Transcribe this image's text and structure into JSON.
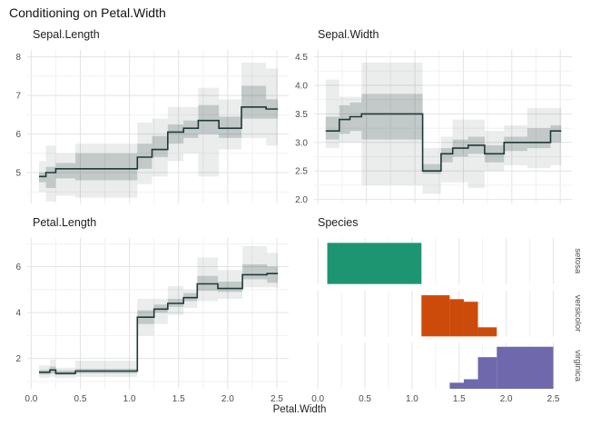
{
  "title": "Conditioning on Petal.Width",
  "xlabel": "Petal.Width",
  "colors": {
    "background": "#ffffff",
    "grid_major": "#e3e3e3",
    "grid_minor": "#f1f1f1",
    "line": "#1e3a39",
    "band_inner": "#1e3a39",
    "band_outer": "#1e3a39",
    "band_inner_opacity": 0.2,
    "band_outer_opacity": 0.09,
    "axis_text": "#4d4d4d",
    "setosa": "#1e9571",
    "versicolor": "#cd4b0a",
    "virginica": "#6f68ac"
  },
  "chart_data": {
    "type": "step-line-grid",
    "x_variable": "Petal.Width",
    "xlim": [
      -0.04,
      2.62
    ],
    "x_grid": [
      0,
      0.25,
      0.5,
      0.75,
      1.0,
      1.25,
      1.5,
      1.75,
      2.0,
      2.25,
      2.5
    ],
    "x_tick_values": [
      0.0,
      0.5,
      1.0,
      1.5,
      2.0,
      2.5
    ],
    "x_tick_labels": [
      "0.0",
      "0.5",
      "1.0",
      "1.5",
      "2.0",
      "2.5"
    ],
    "panels": [
      {
        "key": "sepal-length",
        "title": "Sepal.Length",
        "type": "step",
        "ylim": [
          4.2,
          8.18
        ],
        "y_tick_values": [
          8,
          7,
          6,
          5
        ],
        "y_tick_labels": [
          "8",
          "7",
          "6",
          "5"
        ],
        "y_minor": [
          4.5,
          5.5,
          6.5,
          7.5
        ],
        "segments": [
          {
            "x0": 0.08,
            "x1": 0.15,
            "y": 4.9,
            "inner": [
              4.75,
              5.0
            ],
            "outer": [
              4.5,
              5.3
            ]
          },
          {
            "x0": 0.15,
            "x1": 0.25,
            "y": 5.0,
            "inner": [
              4.6,
              5.15
            ],
            "outer": [
              4.25,
              5.7
            ]
          },
          {
            "x0": 0.25,
            "x1": 0.45,
            "y": 5.1,
            "inner": [
              4.85,
              5.25
            ],
            "outer": [
              4.4,
              5.5
            ]
          },
          {
            "x0": 0.45,
            "x1": 1.08,
            "y": 5.1,
            "inner": [
              4.8,
              5.5
            ],
            "outer": [
              4.35,
              5.75
            ]
          },
          {
            "x0": 1.08,
            "x1": 1.23,
            "y": 5.4,
            "inner": [
              5.1,
              5.75
            ],
            "outer": [
              4.7,
              6.3
            ]
          },
          {
            "x0": 1.23,
            "x1": 1.39,
            "y": 5.6,
            "inner": [
              5.4,
              5.95
            ],
            "outer": [
              4.9,
              6.4
            ]
          },
          {
            "x0": 1.39,
            "x1": 1.55,
            "y": 6.05,
            "inner": [
              5.75,
              6.25
            ],
            "outer": [
              5.3,
              6.7
            ]
          },
          {
            "x0": 1.55,
            "x1": 1.7,
            "y": 6.15,
            "inner": [
              5.9,
              6.35
            ],
            "outer": [
              5.5,
              6.7
            ]
          },
          {
            "x0": 1.7,
            "x1": 1.91,
            "y": 6.35,
            "inner": [
              6.0,
              6.75
            ],
            "outer": [
              4.9,
              7.2
            ]
          },
          {
            "x0": 1.91,
            "x1": 2.14,
            "y": 6.15,
            "inner": [
              5.9,
              6.45
            ],
            "outer": [
              5.6,
              6.9
            ]
          },
          {
            "x0": 2.14,
            "x1": 2.39,
            "y": 6.7,
            "inner": [
              6.4,
              7.25
            ],
            "outer": [
              5.9,
              7.85
            ]
          },
          {
            "x0": 2.39,
            "x1": 2.51,
            "y": 6.65,
            "inner": [
              6.4,
              6.9
            ],
            "outer": [
              5.7,
              7.7
            ]
          }
        ]
      },
      {
        "key": "sepal-width",
        "title": "Sepal.Width",
        "type": "step",
        "ylim": [
          1.93,
          4.62
        ],
        "y_tick_values": [
          4.5,
          4.0,
          3.5,
          3.0,
          2.5,
          2.0
        ],
        "y_tick_labels": [
          "4.5",
          "4.0",
          "3.5",
          "3.0",
          "2.5",
          "2.0"
        ],
        "y_minor": [
          2.25,
          2.75,
          3.25,
          3.75,
          4.25
        ],
        "segments": [
          {
            "x0": 0.08,
            "x1": 0.22,
            "y": 3.2,
            "inner": [
              3.05,
              3.45
            ],
            "outer": [
              2.9,
              4.1
            ]
          },
          {
            "x0": 0.22,
            "x1": 0.33,
            "y": 3.4,
            "inner": [
              3.15,
              3.65
            ],
            "outer": [
              3.0,
              3.8
            ]
          },
          {
            "x0": 0.33,
            "x1": 0.45,
            "y": 3.45,
            "inner": [
              3.2,
              3.7
            ],
            "outer": [
              3.0,
              3.8
            ]
          },
          {
            "x0": 0.45,
            "x1": 1.08,
            "y": 3.5,
            "inner": [
              3.05,
              3.85
            ],
            "outer": [
              2.25,
              4.4
            ]
          },
          {
            "x0": 1.08,
            "x1": 1.27,
            "y": 2.5,
            "inner": [
              2.45,
              2.62
            ],
            "outer": [
              2.1,
              2.9
            ]
          },
          {
            "x0": 1.27,
            "x1": 1.39,
            "y": 2.8,
            "inner": [
              2.65,
              2.9
            ],
            "outer": [
              2.3,
              3.1
            ]
          },
          {
            "x0": 1.39,
            "x1": 1.55,
            "y": 2.9,
            "inner": [
              2.75,
              3.05
            ],
            "outer": [
              2.3,
              3.4
            ]
          },
          {
            "x0": 1.55,
            "x1": 1.72,
            "y": 2.95,
            "inner": [
              2.8,
              3.1
            ],
            "outer": [
              2.2,
              3.4
            ]
          },
          {
            "x0": 1.72,
            "x1": 1.92,
            "y": 2.8,
            "inner": [
              2.65,
              2.95
            ],
            "outer": [
              2.5,
              3.2
            ]
          },
          {
            "x0": 1.92,
            "x1": 2.16,
            "y": 3.0,
            "inner": [
              2.85,
              3.1
            ],
            "outer": [
              2.6,
              3.3
            ]
          },
          {
            "x0": 2.16,
            "x1": 2.4,
            "y": 3.0,
            "inner": [
              2.9,
              3.25
            ],
            "outer": [
              2.55,
              3.6
            ]
          },
          {
            "x0": 2.4,
            "x1": 2.51,
            "y": 3.2,
            "inner": [
              3.0,
              3.3
            ],
            "outer": [
              2.6,
              3.6
            ]
          }
        ]
      },
      {
        "key": "petal-length",
        "title": "Petal.Length",
        "type": "step",
        "ylim": [
          0.68,
          7.25
        ],
        "y_tick_values": [
          6,
          4,
          2
        ],
        "y_tick_labels": [
          "6",
          "4",
          "2"
        ],
        "y_minor": [
          1,
          3,
          5,
          7
        ],
        "segments": [
          {
            "x0": 0.08,
            "x1": 0.19,
            "y": 1.4,
            "inner": [
              1.3,
              1.5
            ],
            "outer": [
              1.15,
              1.7
            ]
          },
          {
            "x0": 0.19,
            "x1": 0.25,
            "y": 1.5,
            "inner": [
              1.35,
              1.65
            ],
            "outer": [
              1.2,
              1.95
            ]
          },
          {
            "x0": 0.25,
            "x1": 0.45,
            "y": 1.35,
            "inner": [
              1.28,
              1.48
            ],
            "outer": [
              1.15,
              1.6
            ]
          },
          {
            "x0": 0.45,
            "x1": 1.08,
            "y": 1.45,
            "inner": [
              1.35,
              1.55
            ],
            "outer": [
              1.2,
              1.9
            ]
          },
          {
            "x0": 1.08,
            "x1": 1.25,
            "y": 3.8,
            "inner": [
              3.5,
              4.1
            ],
            "outer": [
              3.0,
              4.6
            ]
          },
          {
            "x0": 1.25,
            "x1": 1.39,
            "y": 4.15,
            "inner": [
              4.0,
              4.35
            ],
            "outer": [
              3.5,
              4.6
            ]
          },
          {
            "x0": 1.39,
            "x1": 1.55,
            "y": 4.4,
            "inner": [
              4.25,
              4.6
            ],
            "outer": [
              3.9,
              5.15
            ]
          },
          {
            "x0": 1.55,
            "x1": 1.69,
            "y": 4.65,
            "inner": [
              4.5,
              4.85
            ],
            "outer": [
              4.2,
              5.0
            ]
          },
          {
            "x0": 1.69,
            "x1": 1.9,
            "y": 5.25,
            "inner": [
              4.95,
              5.6
            ],
            "outer": [
              4.5,
              6.4
            ]
          },
          {
            "x0": 1.9,
            "x1": 2.15,
            "y": 5.05,
            "inner": [
              4.9,
              5.35
            ],
            "outer": [
              4.6,
              5.85
            ]
          },
          {
            "x0": 2.15,
            "x1": 2.4,
            "y": 5.65,
            "inner": [
              5.45,
              6.1
            ],
            "outer": [
              5.1,
              6.9
            ]
          },
          {
            "x0": 2.4,
            "x1": 2.51,
            "y": 5.7,
            "inner": [
              5.3,
              6.0
            ],
            "outer": [
              5.1,
              6.6
            ]
          }
        ]
      },
      {
        "key": "species",
        "title": "Species",
        "type": "bar-facets",
        "facets": [
          {
            "label": "setosa",
            "color": "#1e9571",
            "bars": [
              {
                "x0": 0.1,
                "x1": 1.1,
                "h": 0.95
              }
            ]
          },
          {
            "label": "versicolor",
            "color": "#cd4b0a",
            "bars": [
              {
                "x0": 1.1,
                "x1": 1.4,
                "h": 0.95
              },
              {
                "x0": 1.4,
                "x1": 1.55,
                "h": 0.86
              },
              {
                "x0": 1.55,
                "x1": 1.7,
                "h": 0.8
              },
              {
                "x0": 1.7,
                "x1": 1.9,
                "h": 0.21
              }
            ]
          },
          {
            "label": "virginica",
            "color": "#6f68ac",
            "bars": [
              {
                "x0": 1.4,
                "x1": 1.55,
                "h": 0.14
              },
              {
                "x0": 1.55,
                "x1": 1.7,
                "h": 0.22
              },
              {
                "x0": 1.7,
                "x1": 1.9,
                "h": 0.73
              },
              {
                "x0": 1.9,
                "x1": 2.5,
                "h": 0.97
              }
            ]
          }
        ]
      }
    ]
  }
}
